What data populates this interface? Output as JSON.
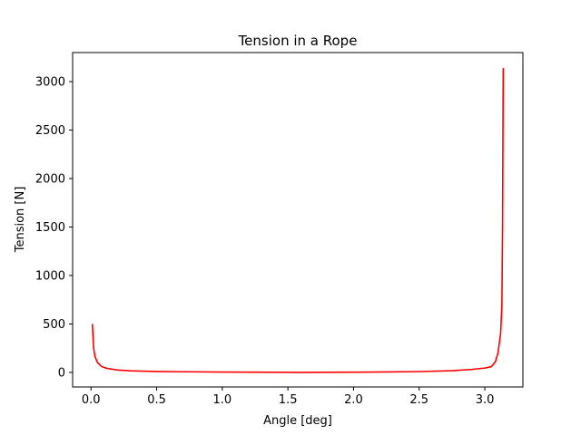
{
  "chart_data": {
    "type": "line",
    "title": "Tension in a Rope",
    "xlabel": "Angle [deg]",
    "ylabel": "Tension [N]",
    "xlim": [
      -0.14,
      3.29
    ],
    "ylim": [
      -150,
      3300
    ],
    "xticks": [
      0.0,
      0.5,
      1.0,
      1.5,
      2.0,
      2.5,
      3.0
    ],
    "xtick_labels": [
      "0.0",
      "0.5",
      "1.0",
      "1.5",
      "2.0",
      "2.5",
      "3.0"
    ],
    "yticks": [
      0,
      500,
      1000,
      1500,
      2000,
      2500,
      3000
    ],
    "ytick_labels": [
      "0",
      "500",
      "1000",
      "1500",
      "2000",
      "2500",
      "3000"
    ],
    "grid": false,
    "series": [
      {
        "color": "#ff0000",
        "x": [
          0.01,
          0.02,
          0.03,
          0.05,
          0.08,
          0.12,
          0.2,
          0.3,
          0.5,
          0.75,
          1.0,
          1.25,
          1.5,
          1.6,
          1.75,
          2.0,
          2.25,
          2.5,
          2.75,
          2.9,
          3.0,
          3.05,
          3.08,
          3.1,
          3.12,
          3.13,
          3.135,
          3.14
        ],
        "y": [
          500,
          250,
          165,
          100,
          62,
          42,
          25,
          17,
          10,
          6.5,
          4,
          2.5,
          1,
          0.5,
          1,
          2.5,
          5,
          9,
          18,
          31,
          45,
          60,
          110,
          200,
          400,
          700,
          1500,
          3140
        ]
      }
    ]
  }
}
